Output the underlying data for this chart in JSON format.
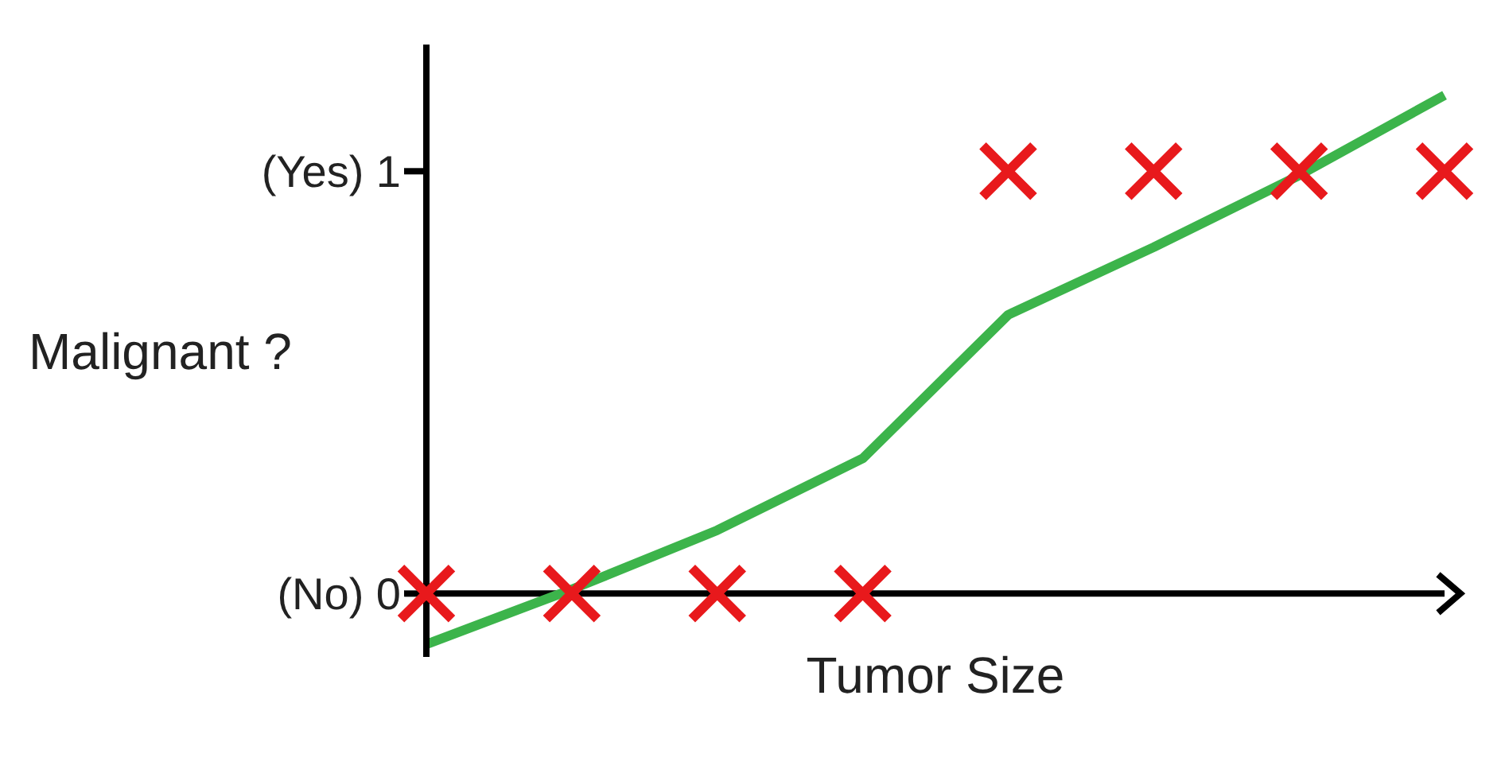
{
  "chart_data": {
    "type": "scatter",
    "xlabel": "Tumor Size",
    "ylabel": "Malignant ?",
    "categories": [
      null,
      null,
      null,
      null,
      null,
      null,
      null,
      null
    ],
    "ylim": [
      -0.15,
      1.3
    ],
    "yticks": [
      {
        "value": 0,
        "label": "(No) 0"
      },
      {
        "value": 1,
        "label": "(Yes) 1"
      }
    ],
    "grid": false,
    "legend": false,
    "marker": "cross",
    "ref_lines": [
      {
        "axis": "y",
        "value": 0,
        "color": "#000000",
        "line_style": "solid"
      }
    ],
    "series": [
      {
        "color": "#e8191c",
        "values": [
          0,
          0,
          0,
          0,
          1,
          1,
          1,
          1
        ]
      },
      {
        "type": "line",
        "color": "#3cb44b",
        "marker": "none",
        "line_style": "solid",
        "values": [
          -0.12,
          0.01,
          0.15,
          0.32,
          0.66,
          0.82,
          0.99,
          1.18
        ]
      }
    ]
  }
}
